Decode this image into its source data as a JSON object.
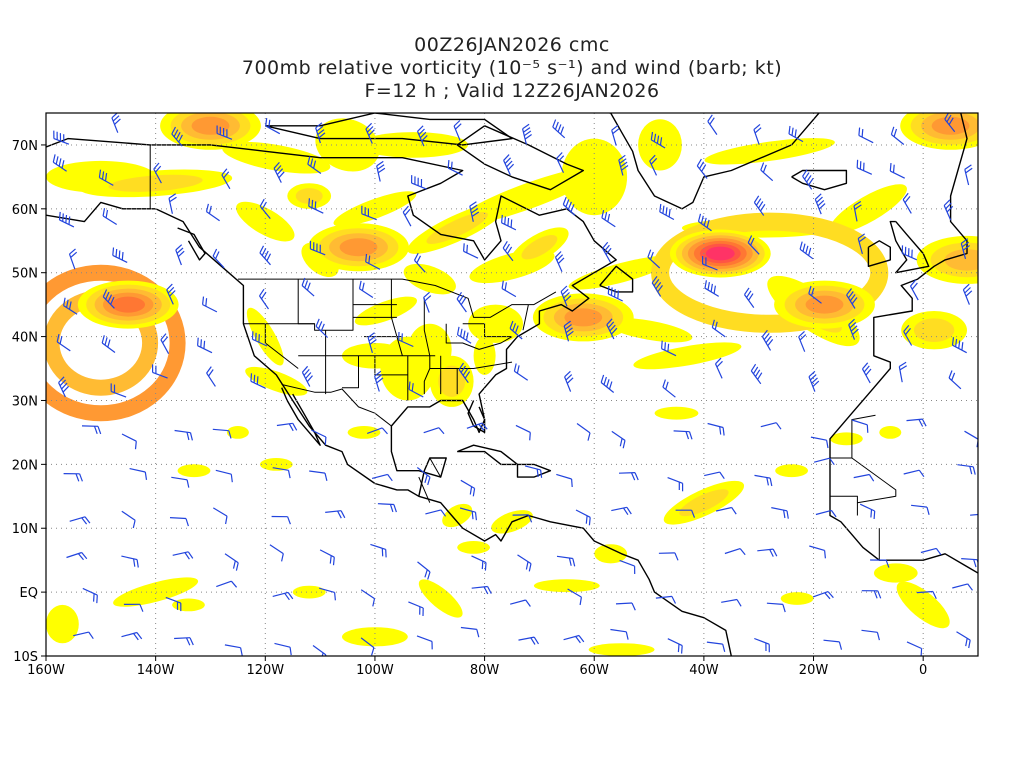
{
  "title": {
    "line1": "00Z26JAN2026 cmc",
    "line2": "700mb relative vorticity (10⁻⁵ s⁻¹) and wind (barb; kt)",
    "line3": "F=12 h ; Valid 12Z26JAN2026"
  },
  "map": {
    "projection": "lat-lon",
    "lon_range": [
      -160,
      10
    ],
    "lat_range": [
      -10,
      75
    ],
    "grid": "dotted",
    "lon_ticks": [
      {
        "lon": -160,
        "label": "160W"
      },
      {
        "lon": -140,
        "label": "140W"
      },
      {
        "lon": -120,
        "label": "120W"
      },
      {
        "lon": -100,
        "label": "100W"
      },
      {
        "lon": -80,
        "label": "80W"
      },
      {
        "lon": -60,
        "label": "60W"
      },
      {
        "lon": -40,
        "label": "40W"
      },
      {
        "lon": -20,
        "label": "20W"
      },
      {
        "lon": 0,
        "label": "0"
      }
    ],
    "lat_ticks": [
      {
        "lat": -10,
        "label": "10S"
      },
      {
        "lat": 0,
        "label": "EQ"
      },
      {
        "lat": 10,
        "label": "10N"
      },
      {
        "lat": 20,
        "label": "20N"
      },
      {
        "lat": 30,
        "label": "30N"
      },
      {
        "lat": 40,
        "label": "40N"
      },
      {
        "lat": 50,
        "label": "50N"
      },
      {
        "lat": 60,
        "label": "60N"
      },
      {
        "lat": 70,
        "label": "70N"
      }
    ],
    "shading_colors": [
      "#ffff00",
      "#ffdd22",
      "#ffbb33",
      "#ff9933",
      "#ff7733",
      "#ff5544",
      "#ff3366"
    ],
    "barb_color": "#2244dd",
    "coast_color": "#000000",
    "vorticity_maxima": [
      {
        "name": "central-atlantic-low",
        "lon": -37,
        "lat": 53,
        "level": 7
      },
      {
        "name": "gulf-of-alaska-low",
        "lon": -145,
        "lat": 45,
        "level": 5
      },
      {
        "name": "arctic-north-pacific",
        "lon": -130,
        "lat": 73,
        "level": 4
      },
      {
        "name": "hudson-bay",
        "lon": -103,
        "lat": 54,
        "level": 4
      },
      {
        "name": "canadian-maritimes",
        "lon": -62,
        "lat": 43,
        "level": 4
      },
      {
        "name": "northeast-atlantic-arc",
        "lon": -18,
        "lat": 45,
        "level": 4
      },
      {
        "name": "norwegian-sea",
        "lon": 5,
        "lat": 73,
        "level": 4
      },
      {
        "name": "north-sea",
        "lon": 8,
        "lat": 52,
        "level": 3
      }
    ]
  }
}
